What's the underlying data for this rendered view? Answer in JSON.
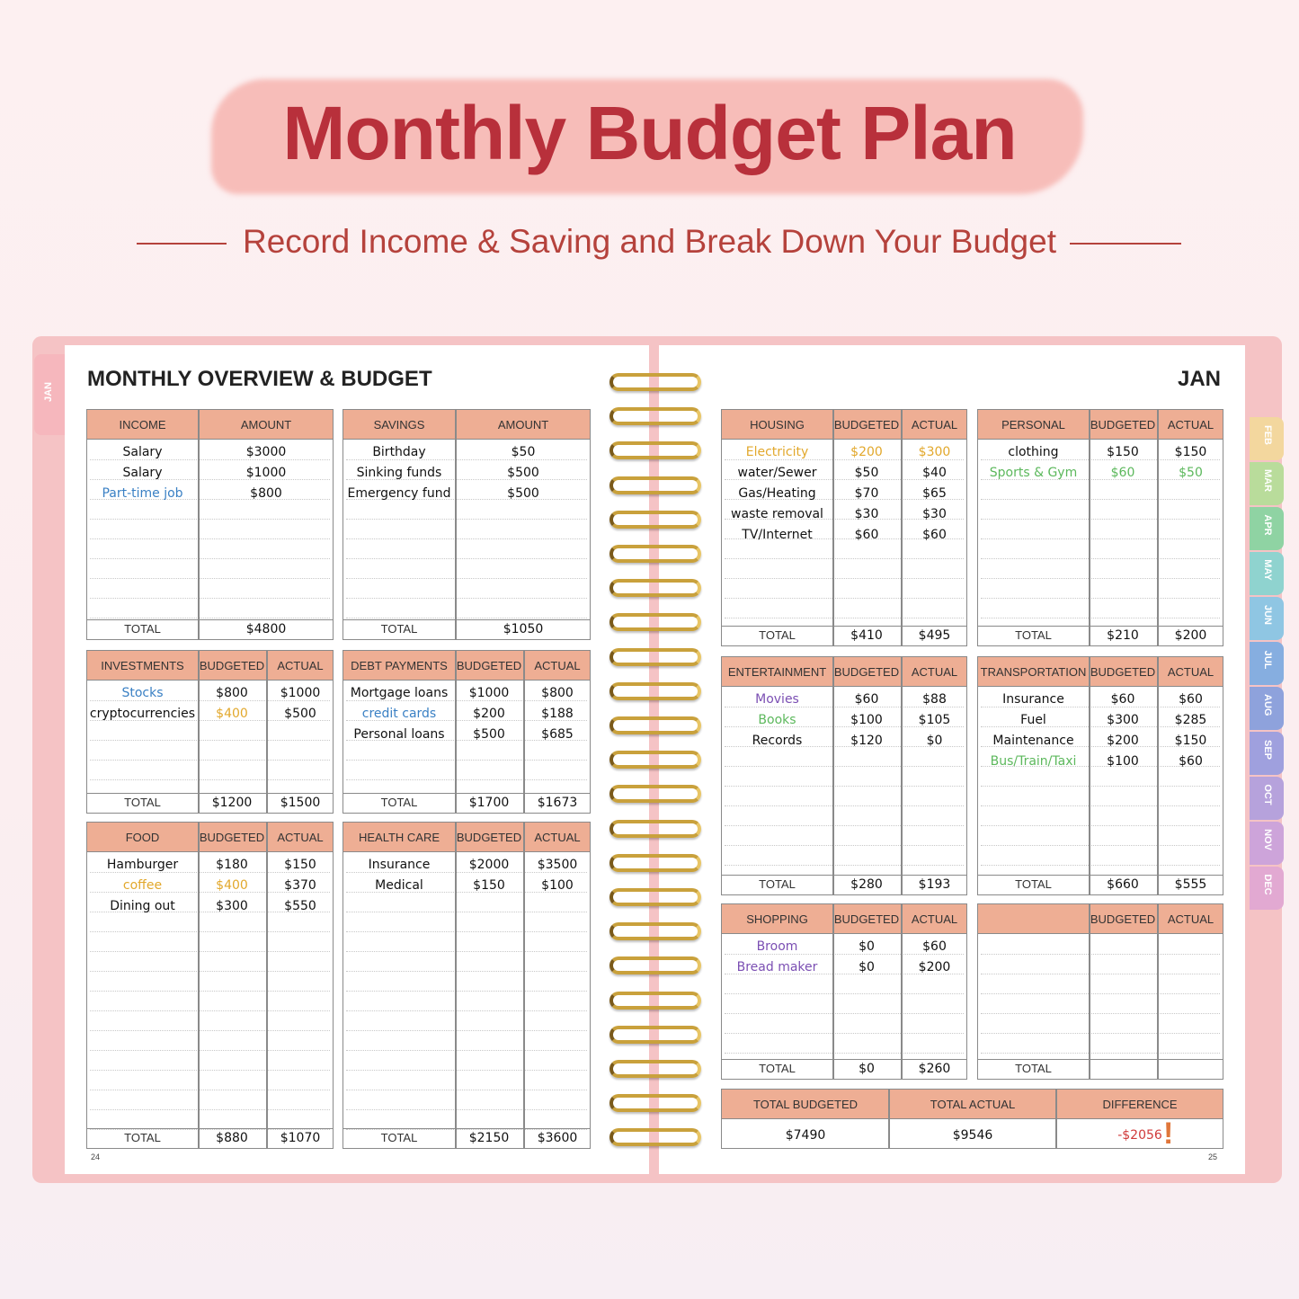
{
  "header": {
    "title": "Monthly Budget Plan",
    "subtitle": "Record Income & Saving and Break Down Your Budget"
  },
  "colors": {
    "accent": "#b8303b",
    "table_header": "#eeae94",
    "blue": "#3a80c4",
    "gold": "#e2a82c",
    "green": "#5cb85c",
    "purple": "#7b4fb3",
    "red": "#d03a3a"
  },
  "left_page": {
    "title": "MONTHLY OVERVIEW & BUDGET",
    "page_number": "24",
    "tab": "JAN"
  },
  "right_page": {
    "title": "JAN",
    "page_number": "25"
  },
  "month_tabs": [
    {
      "label": "FEB",
      "color": "#f3d79e"
    },
    {
      "label": "MAR",
      "color": "#b9dc9b"
    },
    {
      "label": "APR",
      "color": "#8fd3a3"
    },
    {
      "label": "MAY",
      "color": "#8fd3cf"
    },
    {
      "label": "JUN",
      "color": "#8fc6e3"
    },
    {
      "label": "JUL",
      "color": "#86aee0"
    },
    {
      "label": "AUG",
      "color": "#8ea2dc"
    },
    {
      "label": "SEP",
      "color": "#9fa0de"
    },
    {
      "label": "OCT",
      "color": "#b6a2dc"
    },
    {
      "label": "NOV",
      "color": "#cda4da"
    },
    {
      "label": "DEC",
      "color": "#e2a9d2"
    }
  ],
  "tables": [
    {
      "id": "income",
      "headers": [
        "INCOME",
        "AMOUNT"
      ],
      "rows": [
        {
          "cells": [
            "Salary",
            "$3000"
          ]
        },
        {
          "cells": [
            "Salary",
            "$1000"
          ]
        },
        {
          "cells": [
            "Part-time job",
            "$800"
          ],
          "colors": [
            "blue",
            null
          ]
        }
      ],
      "total": [
        "TOTAL",
        "$4800"
      ]
    },
    {
      "id": "savings",
      "headers": [
        "SAVINGS",
        "AMOUNT"
      ],
      "rows": [
        {
          "cells": [
            "Birthday",
            "$50"
          ]
        },
        {
          "cells": [
            "Sinking funds",
            "$500"
          ]
        },
        {
          "cells": [
            "Emergency fund",
            "$500"
          ]
        }
      ],
      "total": [
        "TOTAL",
        "$1050"
      ]
    },
    {
      "id": "investments",
      "headers": [
        "INVESTMENTS",
        "BUDGETED",
        "ACTUAL"
      ],
      "rows": [
        {
          "cells": [
            "Stocks",
            "$800",
            "$1000"
          ],
          "colors": [
            "blue",
            null,
            null
          ]
        },
        {
          "cells": [
            "cryptocurrencies",
            "$400",
            "$500"
          ],
          "colors": [
            null,
            "gold",
            null
          ]
        }
      ],
      "total": [
        "TOTAL",
        "$1200",
        "$1500"
      ]
    },
    {
      "id": "debt-payments",
      "headers": [
        "DEBT PAYMENTS",
        "BUDGETED",
        "ACTUAL"
      ],
      "rows": [
        {
          "cells": [
            "Mortgage loans",
            "$1000",
            "$800"
          ]
        },
        {
          "cells": [
            "credit cards",
            "$200",
            "$188"
          ],
          "colors": [
            "blue",
            null,
            null
          ]
        },
        {
          "cells": [
            "Personal loans",
            "$500",
            "$685"
          ]
        }
      ],
      "total": [
        "TOTAL",
        "$1700",
        "$1673"
      ]
    },
    {
      "id": "food",
      "headers": [
        "FOOD",
        "BUDGETED",
        "ACTUAL"
      ],
      "rows": [
        {
          "cells": [
            "Hamburger",
            "$180",
            "$150"
          ]
        },
        {
          "cells": [
            "coffee",
            "$400",
            "$370"
          ],
          "colors": [
            "gold",
            "gold",
            null
          ]
        },
        {
          "cells": [
            "Dining out",
            "$300",
            "$550"
          ]
        }
      ],
      "total": [
        "TOTAL",
        "$880",
        "$1070"
      ]
    },
    {
      "id": "health-care",
      "headers": [
        "HEALTH CARE",
        "BUDGETED",
        "ACTUAL"
      ],
      "rows": [
        {
          "cells": [
            "Insurance",
            "$2000",
            "$3500"
          ]
        },
        {
          "cells": [
            "Medical",
            "$150",
            "$100"
          ]
        }
      ],
      "total": [
        "TOTAL",
        "$2150",
        "$3600"
      ]
    },
    {
      "id": "housing",
      "headers": [
        "HOUSING",
        "BUDGETED",
        "ACTUAL"
      ],
      "rows": [
        {
          "cells": [
            "Electricity",
            "$200",
            "$300"
          ],
          "colors": [
            "gold",
            "gold",
            "gold"
          ]
        },
        {
          "cells": [
            "water/Sewer",
            "$50",
            "$40"
          ]
        },
        {
          "cells": [
            "Gas/Heating",
            "$70",
            "$65"
          ]
        },
        {
          "cells": [
            "waste removal",
            "$30",
            "$30"
          ]
        },
        {
          "cells": [
            "TV/Internet",
            "$60",
            "$60"
          ]
        }
      ],
      "total": [
        "TOTAL",
        "$410",
        "$495"
      ]
    },
    {
      "id": "personal",
      "headers": [
        "PERSONAL",
        "BUDGETED",
        "ACTUAL"
      ],
      "rows": [
        {
          "cells": [
            "clothing",
            "$150",
            "$150"
          ]
        },
        {
          "cells": [
            "Sports & Gym",
            "$60",
            "$50"
          ],
          "colors": [
            "green",
            "green",
            "green"
          ]
        }
      ],
      "total": [
        "TOTAL",
        "$210",
        "$200"
      ]
    },
    {
      "id": "entertainment",
      "headers": [
        "ENTERTAINMENT",
        "BUDGETED",
        "ACTUAL"
      ],
      "rows": [
        {
          "cells": [
            "Movies",
            "$60",
            "$88"
          ],
          "colors": [
            "purple",
            null,
            null
          ]
        },
        {
          "cells": [
            "Books",
            "$100",
            "$105"
          ],
          "colors": [
            "green",
            null,
            null
          ]
        },
        {
          "cells": [
            "Records",
            "$120",
            "$0"
          ]
        }
      ],
      "total": [
        "TOTAL",
        "$280",
        "$193"
      ]
    },
    {
      "id": "transportation",
      "headers": [
        "TRANSPORTATION",
        "BUDGETED",
        "ACTUAL"
      ],
      "rows": [
        {
          "cells": [
            "Insurance",
            "$60",
            "$60"
          ]
        },
        {
          "cells": [
            "Fuel",
            "$300",
            "$285"
          ]
        },
        {
          "cells": [
            "Maintenance",
            "$200",
            "$150"
          ]
        },
        {
          "cells": [
            "Bus/Train/Taxi",
            "$100",
            "$60"
          ],
          "colors": [
            "green",
            null,
            null
          ]
        }
      ],
      "total": [
        "TOTAL",
        "$660",
        "$555"
      ]
    },
    {
      "id": "shopping",
      "headers": [
        "SHOPPING",
        "BUDGETED",
        "ACTUAL"
      ],
      "rows": [
        {
          "cells": [
            "Broom",
            "$0",
            "$60"
          ],
          "colors": [
            "purple",
            null,
            null
          ]
        },
        {
          "cells": [
            "Bread maker",
            "$0",
            "$200"
          ],
          "colors": [
            "purple",
            null,
            null
          ]
        }
      ],
      "total": [
        "TOTAL",
        "$0",
        "$260"
      ]
    },
    {
      "id": "blank",
      "headers": [
        "",
        "BUDGETED",
        "ACTUAL"
      ],
      "rows": [],
      "total": [
        "TOTAL",
        "",
        ""
      ]
    }
  ],
  "summary": {
    "headers": [
      "TOTAL BUDGETED",
      "TOTAL ACTUAL",
      "DIFFERENCE"
    ],
    "values": [
      "$7490",
      "$9546",
      "-$2056"
    ],
    "difference_color": "red"
  }
}
